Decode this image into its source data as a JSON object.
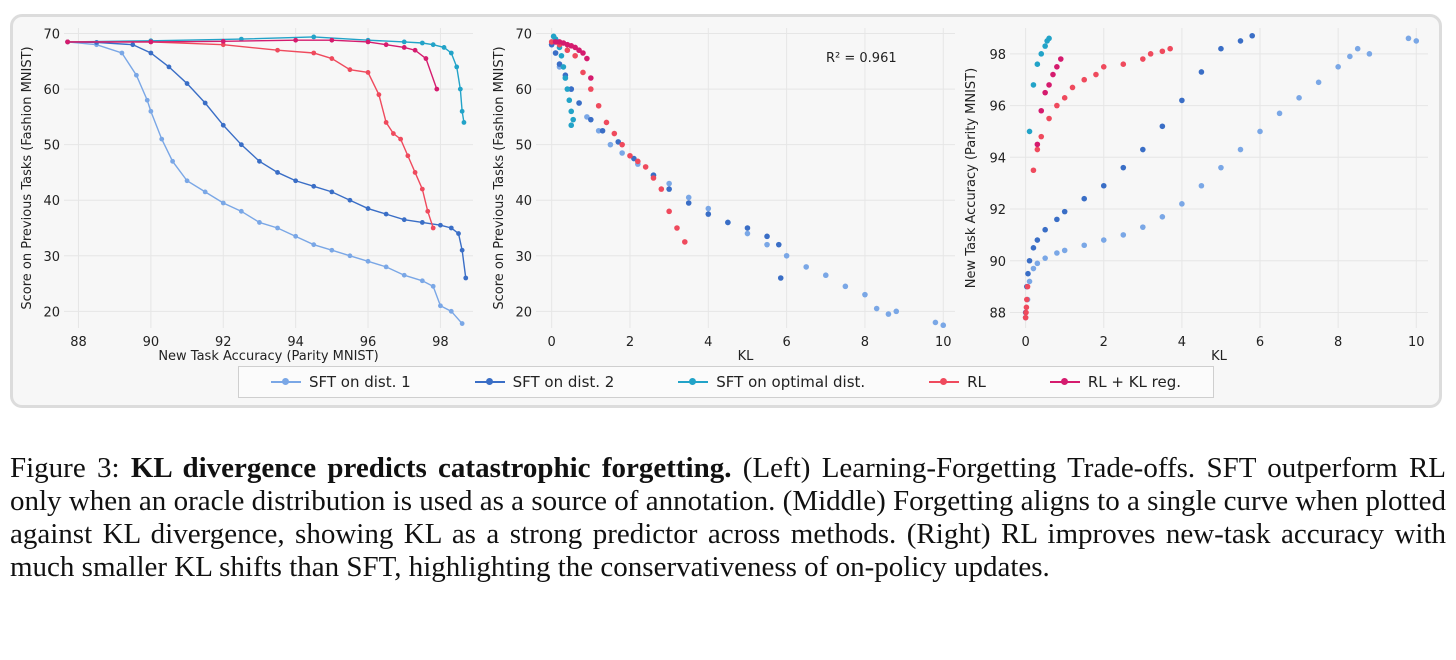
{
  "colors": {
    "sft1": "#7aa7e6",
    "sft2": "#3a6ec6",
    "sftopt": "#22a3c8",
    "rl": "#ef4a5d",
    "rlkl": "#d51b6e"
  },
  "legend": [
    {
      "label": "SFT on dist. 1",
      "color": "#7aa7e6"
    },
    {
      "label": "SFT on dist. 2",
      "color": "#3a6ec6"
    },
    {
      "label": "SFT on optimal dist.",
      "color": "#22a3c8"
    },
    {
      "label": "RL",
      "color": "#ef4a5d"
    },
    {
      "label": "RL + KL reg.",
      "color": "#d51b6e"
    }
  ],
  "caption": {
    "prefix": "Figure 3: ",
    "title": "KL divergence predicts catastrophic forgetting.",
    "body": " (Left) Learning-Forgetting Trade-offs. SFT outperform RL only when an oracle distribution is used as a source of annotation. (Middle) Forgetting aligns to a single curve when plotted against KL divergence, showing KL as a strong predictor across methods. (Right) RL improves new-task accuracy with much smaller KL shifts than SFT, highlighting the conservativeness of on-policy updates."
  },
  "chart_data": [
    {
      "type": "line",
      "xlabel": "New Task Accuracy (Parity MNIST)",
      "ylabel": "Score on Previous Tasks (Fashion MNIST)",
      "xlim": [
        87.6,
        98.9
      ],
      "ylim": [
        17,
        71
      ],
      "xticks": [
        88,
        90,
        92,
        94,
        96,
        98
      ],
      "yticks": [
        20,
        30,
        40,
        50,
        60,
        70
      ],
      "series": [
        {
          "name": "SFT on dist. 1",
          "x": [
            87.7,
            88.5,
            89.2,
            89.6,
            89.9,
            90.0,
            90.3,
            90.6,
            91.0,
            91.5,
            92.0,
            92.5,
            93.0,
            93.5,
            94.0,
            94.5,
            95.0,
            95.5,
            96.0,
            96.5,
            97.0,
            97.5,
            97.8,
            98.0,
            98.3,
            98.6
          ],
          "y": [
            68.5,
            68.0,
            66.5,
            62.5,
            58.0,
            56.0,
            51.0,
            47.0,
            43.5,
            41.5,
            39.5,
            38.0,
            36.0,
            35.0,
            33.5,
            32.0,
            31.0,
            30.0,
            29.0,
            28.0,
            26.5,
            25.5,
            24.5,
            21.0,
            20.0,
            17.8
          ]
        },
        {
          "name": "SFT on dist. 2",
          "x": [
            87.7,
            88.5,
            89.5,
            90.0,
            90.5,
            91.0,
            91.5,
            92.0,
            92.5,
            93.0,
            93.5,
            94.0,
            94.5,
            95.0,
            95.5,
            96.0,
            96.5,
            97.0,
            97.5,
            98.0,
            98.3,
            98.5,
            98.6,
            98.7
          ],
          "y": [
            68.5,
            68.4,
            68.0,
            66.5,
            64.0,
            61.0,
            57.5,
            53.5,
            50.0,
            47.0,
            45.0,
            43.5,
            42.5,
            41.5,
            40.0,
            38.5,
            37.5,
            36.5,
            36.0,
            35.5,
            35.0,
            34.0,
            31.0,
            26.0
          ]
        },
        {
          "name": "SFT on optimal dist.",
          "x": [
            87.7,
            90.0,
            92.5,
            94.5,
            96.0,
            97.0,
            97.5,
            97.8,
            98.1,
            98.3,
            98.45,
            98.55,
            98.6,
            98.65
          ],
          "y": [
            68.5,
            68.7,
            69.0,
            69.4,
            68.8,
            68.5,
            68.3,
            68.0,
            67.5,
            66.5,
            64.0,
            60.0,
            56.0,
            54.0
          ]
        },
        {
          "name": "RL",
          "x": [
            87.7,
            90.0,
            92.0,
            93.5,
            94.5,
            95.0,
            95.5,
            96.0,
            96.3,
            96.5,
            96.7,
            96.9,
            97.1,
            97.3,
            97.5,
            97.65,
            97.8
          ],
          "y": [
            68.5,
            68.5,
            68.0,
            67.0,
            66.5,
            65.5,
            63.5,
            63.0,
            59.0,
            54.0,
            52.0,
            51.0,
            48.0,
            45.0,
            42.0,
            38.0,
            35.0
          ]
        },
        {
          "name": "RL + KL reg.",
          "x": [
            87.7,
            90.0,
            92.0,
            94.0,
            95.0,
            96.0,
            96.5,
            97.0,
            97.3,
            97.6,
            97.9
          ],
          "y": [
            68.5,
            68.5,
            68.6,
            68.8,
            68.8,
            68.5,
            68.0,
            67.5,
            67.0,
            65.5,
            60.0
          ]
        }
      ]
    },
    {
      "type": "scatter",
      "xlabel": "KL",
      "ylabel": "Score on Previous Tasks (Fashion MNIST)",
      "annotation": "R² = 0.961",
      "xlim": [
        -0.4,
        10.3
      ],
      "ylim": [
        17,
        71
      ],
      "xticks": [
        0,
        2,
        4,
        6,
        8,
        10
      ],
      "yticks": [
        20,
        30,
        40,
        50,
        60,
        70
      ],
      "series": [
        {
          "name": "SFT on dist. 1",
          "x": [
            0.0,
            0.1,
            0.2,
            0.35,
            0.5,
            0.7,
            0.9,
            1.2,
            1.5,
            1.8,
            2.2,
            2.6,
            3.0,
            3.5,
            4.0,
            4.5,
            5.0,
            5.5,
            6.0,
            6.5,
            7.0,
            7.5,
            8.0,
            8.3,
            8.6,
            8.8,
            9.8,
            10.0
          ],
          "y": [
            68,
            66.5,
            64,
            62,
            60,
            57.5,
            55,
            52.5,
            50,
            48.5,
            46.5,
            44.5,
            43,
            40.5,
            38.5,
            36,
            34,
            32,
            30,
            28,
            26.5,
            24.5,
            23,
            20.5,
            19.5,
            20,
            18,
            17.5
          ]
        },
        {
          "name": "SFT on dist. 2",
          "x": [
            0.0,
            0.1,
            0.2,
            0.35,
            0.5,
            0.7,
            1.0,
            1.3,
            1.7,
            2.1,
            2.6,
            3.0,
            3.5,
            4.0,
            4.5,
            5.0,
            5.5,
            5.8,
            5.85
          ],
          "y": [
            68,
            66.5,
            64.5,
            62.5,
            60,
            57.5,
            54.5,
            52.5,
            50.5,
            47.5,
            44.5,
            42,
            39.5,
            37.5,
            36,
            35,
            33.5,
            32,
            26
          ]
        },
        {
          "name": "SFT on optimal dist.",
          "x": [
            0.05,
            0.1,
            0.15,
            0.2,
            0.25,
            0.3,
            0.35,
            0.4,
            0.45,
            0.5,
            0.55,
            0.5
          ],
          "y": [
            69.5,
            69.0,
            68.5,
            67.5,
            66,
            64,
            62,
            60,
            58,
            56,
            54.5,
            53.5
          ]
        },
        {
          "name": "RL",
          "x": [
            0.0,
            0.2,
            0.4,
            0.6,
            0.8,
            1.0,
            1.2,
            1.4,
            1.6,
            1.8,
            2.0,
            2.2,
            2.4,
            2.6,
            2.8,
            3.0,
            3.2,
            3.4
          ],
          "y": [
            68.5,
            68,
            67,
            66,
            63,
            60,
            57,
            54,
            52,
            50,
            48,
            47,
            46,
            44,
            42,
            38,
            35,
            32.5
          ]
        },
        {
          "name": "RL + KL reg.",
          "x": [
            0.1,
            0.2,
            0.3,
            0.4,
            0.5,
            0.6,
            0.7,
            0.8,
            0.9,
            1.0
          ],
          "y": [
            68.5,
            68.5,
            68.3,
            68,
            67.8,
            67.5,
            67,
            66.5,
            65.5,
            62
          ]
        }
      ]
    },
    {
      "type": "scatter",
      "xlabel": "KL",
      "ylabel": "New Task Accuracy (Parity MNIST)",
      "xlim": [
        -0.4,
        10.3
      ],
      "ylim": [
        87.4,
        99.0
      ],
      "xticks": [
        0,
        2,
        4,
        6,
        8,
        10
      ],
      "yticks": [
        88,
        90,
        92,
        94,
        96,
        98
      ],
      "series": [
        {
          "name": "SFT on dist. 1",
          "x": [
            0.0,
            0.05,
            0.1,
            0.2,
            0.3,
            0.5,
            0.8,
            1.0,
            1.5,
            2.0,
            2.5,
            3.0,
            3.5,
            4.0,
            4.5,
            5.0,
            5.5,
            6.0,
            6.5,
            7.0,
            7.5,
            8.0,
            8.3,
            8.5,
            8.8,
            9.8,
            10.0
          ],
          "y": [
            87.8,
            88.5,
            89.2,
            89.7,
            89.9,
            90.1,
            90.3,
            90.4,
            90.6,
            90.8,
            91.0,
            91.3,
            91.7,
            92.2,
            92.9,
            93.6,
            94.3,
            95.0,
            95.7,
            96.3,
            96.9,
            97.5,
            97.9,
            98.2,
            98.0,
            98.6,
            98.5
          ]
        },
        {
          "name": "SFT on dist. 2",
          "x": [
            0.0,
            0.03,
            0.06,
            0.1,
            0.2,
            0.3,
            0.5,
            0.8,
            1.0,
            1.5,
            2.0,
            2.5,
            3.0,
            3.5,
            4.0,
            4.5,
            5.0,
            5.5,
            5.8
          ],
          "y": [
            88.0,
            89.0,
            89.5,
            90.0,
            90.5,
            90.8,
            91.2,
            91.6,
            91.9,
            92.4,
            92.9,
            93.6,
            94.3,
            95.2,
            96.2,
            97.3,
            98.2,
            98.5,
            98.7
          ]
        },
        {
          "name": "SFT on optimal dist.",
          "x": [
            0.1,
            0.2,
            0.3,
            0.4,
            0.5,
            0.55,
            0.6
          ],
          "y": [
            95.0,
            96.8,
            97.6,
            98.0,
            98.3,
            98.5,
            98.6
          ]
        },
        {
          "name": "RL",
          "x": [
            0.0,
            0.01,
            0.02,
            0.03,
            0.05,
            0.2,
            0.3,
            0.4,
            0.6,
            0.8,
            1.0,
            1.2,
            1.5,
            1.8,
            2.0,
            2.5,
            3.0,
            3.2,
            3.5,
            3.7
          ],
          "y": [
            87.8,
            88.0,
            88.2,
            88.5,
            89.0,
            93.5,
            94.3,
            94.8,
            95.5,
            96.0,
            96.3,
            96.7,
            97.0,
            97.2,
            97.5,
            97.6,
            97.8,
            98.0,
            98.1,
            98.2
          ]
        },
        {
          "name": "RL + KL reg.",
          "x": [
            0.3,
            0.4,
            0.5,
            0.6,
            0.7,
            0.8,
            0.9
          ],
          "y": [
            94.5,
            95.8,
            96.5,
            96.8,
            97.2,
            97.5,
            97.8
          ]
        }
      ]
    }
  ]
}
